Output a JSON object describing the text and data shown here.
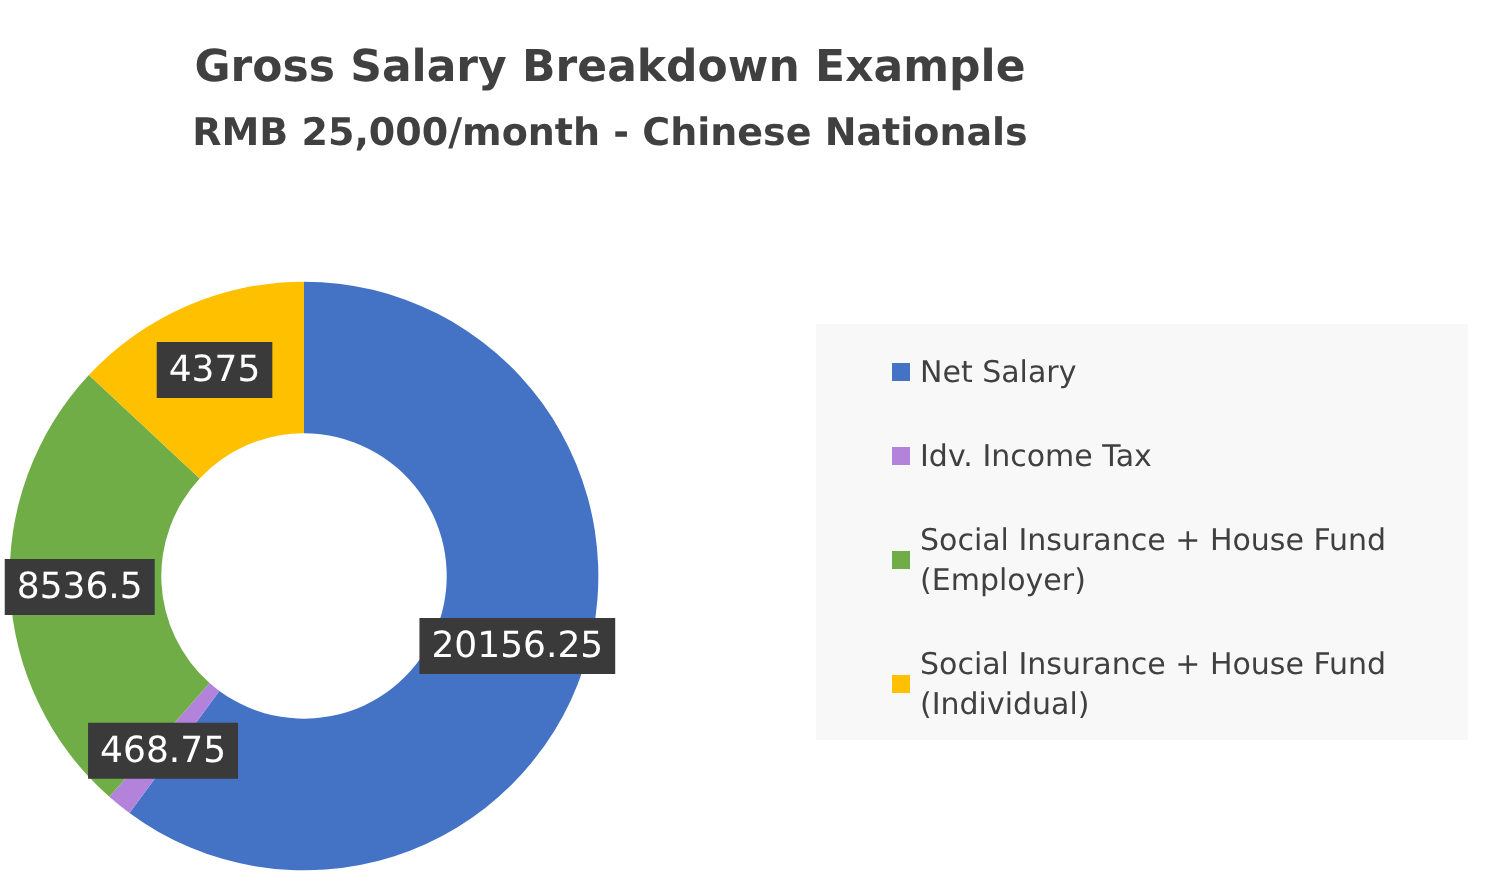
{
  "chart_data": {
    "type": "donut",
    "title": "Gross Salary Breakdown Example",
    "subtitle": "RMB 25,000/month - Chinese Nationals",
    "categories": [
      "Net Salary",
      "Idv. Income Tax",
      "Social Insurance + House Fund (Employer)",
      "Social Insurance + House Fund (Individual)"
    ],
    "values": [
      20156.25,
      468.75,
      8536.5,
      4375
    ],
    "colors": [
      "#4472c4",
      "#b383dc",
      "#70ad47",
      "#ffc000"
    ],
    "data_labels": true,
    "legend": "right"
  }
}
